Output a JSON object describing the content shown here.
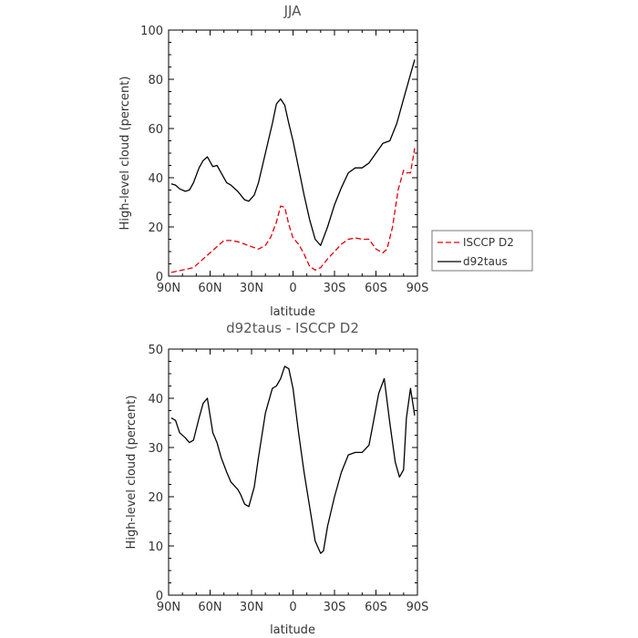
{
  "chart_data": [
    {
      "type": "line",
      "title": "JJA",
      "xlabel": "latitude",
      "ylabel": "High-level cloud (percent)",
      "x_ticks": [
        {
          "value": 90,
          "label": "90N"
        },
        {
          "value": 60,
          "label": "60N"
        },
        {
          "value": 30,
          "label": "30N"
        },
        {
          "value": 0,
          "label": "0"
        },
        {
          "value": -30,
          "label": "30S"
        },
        {
          "value": -60,
          "label": "60S"
        },
        {
          "value": -90,
          "label": "90S"
        }
      ],
      "xlim": [
        90,
        -90
      ],
      "ylim": [
        0,
        100
      ],
      "y_ticks": [
        0,
        20,
        40,
        60,
        80,
        100
      ],
      "legend_position": "outside-right",
      "series": [
        {
          "name": "ISCCP D2",
          "color": "#e0000a",
          "dash": "dashed",
          "x": [
            88,
            80,
            72,
            65,
            60,
            55,
            50,
            45,
            40,
            35,
            30,
            25,
            20,
            16,
            12,
            9,
            6,
            3,
            0,
            -4,
            -8,
            -12,
            -16,
            -20,
            -25,
            -30,
            -35,
            -40,
            -45,
            -50,
            -55,
            -60,
            -65,
            -68,
            -72,
            -76,
            -80,
            -82,
            -85,
            -88
          ],
          "y": [
            1.5,
            2.5,
            3.5,
            7,
            9.5,
            12,
            14.5,
            14.5,
            14,
            13,
            12,
            11,
            12.5,
            16,
            22,
            28.5,
            28,
            21,
            15.5,
            13,
            9,
            4,
            2.5,
            3.5,
            7,
            10,
            13,
            15,
            15.5,
            15,
            15,
            11,
            9.5,
            11,
            20,
            35,
            43,
            42,
            42,
            52
          ]
        },
        {
          "name": "d92taus",
          "color": "#000000",
          "dash": "solid",
          "x": [
            88,
            85,
            82,
            78,
            75,
            72,
            68,
            65,
            62,
            58,
            55,
            52,
            48,
            45,
            40,
            35,
            32,
            28,
            25,
            20,
            15,
            12,
            9,
            6,
            3,
            0,
            -4,
            -8,
            -12,
            -16,
            -20,
            -25,
            -30,
            -35,
            -40,
            -45,
            -50,
            -55,
            -60,
            -65,
            -70,
            -75,
            -80,
            -85,
            -88
          ],
          "y": [
            37.5,
            37,
            35.5,
            34.5,
            35,
            38,
            44,
            47,
            48.5,
            44.5,
            45,
            42,
            38,
            37,
            34.5,
            31,
            30.5,
            33,
            38,
            50,
            62,
            70,
            72,
            69.5,
            62,
            55,
            44,
            33,
            23,
            15,
            12.5,
            20,
            29,
            36,
            42,
            44,
            44,
            46,
            50,
            54,
            55,
            62,
            72,
            82,
            88
          ]
        }
      ]
    },
    {
      "type": "line",
      "title": "d92taus - ISCCP D2",
      "xlabel": "latitude",
      "ylabel": "High-level cloud (percent)",
      "x_ticks": [
        {
          "value": 90,
          "label": "90N"
        },
        {
          "value": 60,
          "label": "60N"
        },
        {
          "value": 30,
          "label": "30N"
        },
        {
          "value": 0,
          "label": "0"
        },
        {
          "value": -30,
          "label": "30S"
        },
        {
          "value": -60,
          "label": "60S"
        },
        {
          "value": -90,
          "label": "90S"
        }
      ],
      "xlim": [
        90,
        -90
      ],
      "ylim": [
        0,
        50
      ],
      "y_ticks": [
        0,
        10,
        20,
        30,
        40,
        50
      ],
      "series": [
        {
          "color": "#000000",
          "dash": "solid",
          "x": [
            88,
            85,
            82,
            78,
            75,
            72,
            68,
            65,
            62,
            58,
            55,
            52,
            48,
            45,
            40,
            38,
            35,
            32,
            28,
            25,
            20,
            15,
            12,
            9,
            6,
            3,
            0,
            -4,
            -8,
            -12,
            -16,
            -20,
            -22,
            -25,
            -30,
            -35,
            -40,
            -45,
            -50,
            -55,
            -58,
            -62,
            -66,
            -70,
            -74,
            -77,
            -80,
            -82,
            -85,
            -88
          ],
          "y": [
            36,
            35.5,
            33,
            32,
            31,
            31.5,
            36,
            39,
            40,
            33,
            31,
            28,
            25,
            23,
            21.5,
            20.5,
            18.5,
            18,
            22,
            28,
            37,
            42,
            42.5,
            44,
            46.5,
            46,
            42,
            33,
            25,
            18,
            11,
            8.5,
            9,
            14,
            20,
            25,
            28.5,
            29,
            29,
            30.5,
            35,
            41,
            44,
            35,
            27,
            24,
            25.5,
            36,
            42,
            36.5
          ]
        }
      ]
    }
  ]
}
